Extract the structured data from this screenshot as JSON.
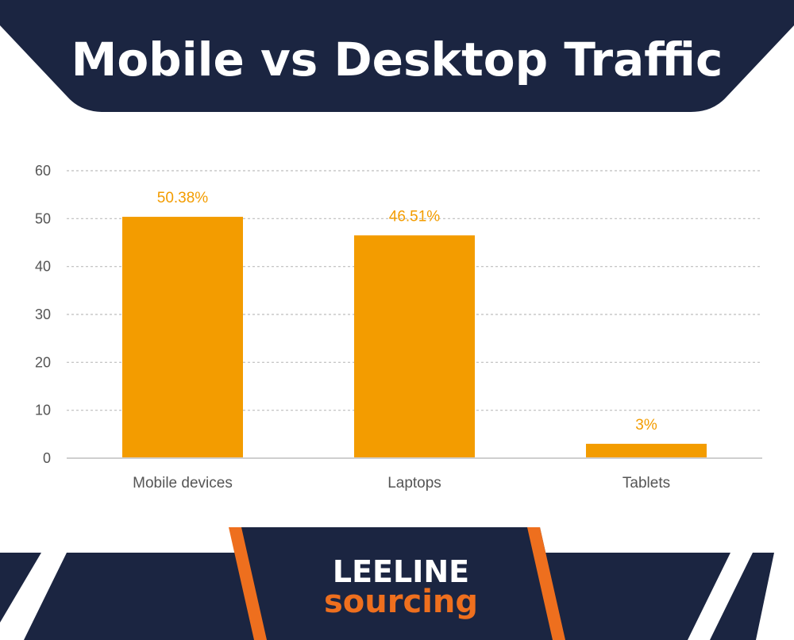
{
  "colors": {
    "navy": "#1b2541",
    "bar": "#f39c00",
    "label": "#f39c00",
    "orange_accent": "#ee6f1e",
    "grid": "#bdbdbd",
    "axis_text": "#555555"
  },
  "header": {
    "title": "Mobile vs Desktop Traffic"
  },
  "chart_data": {
    "type": "bar",
    "title": "Mobile vs Desktop Traffic",
    "categories": [
      "Mobile devices",
      "Laptops",
      "Tablets"
    ],
    "values": [
      50.38,
      46.51,
      3
    ],
    "data_labels": [
      "50.38%",
      "46.51%",
      "3%"
    ],
    "xlabel": "",
    "ylabel": "",
    "ylim": [
      0,
      60
    ],
    "yticks": [
      0,
      10,
      20,
      30,
      40,
      50,
      60
    ],
    "grid": true,
    "legend": "none"
  },
  "footer": {
    "logo_line1": "LEELINE",
    "logo_line2": "sourcing"
  }
}
